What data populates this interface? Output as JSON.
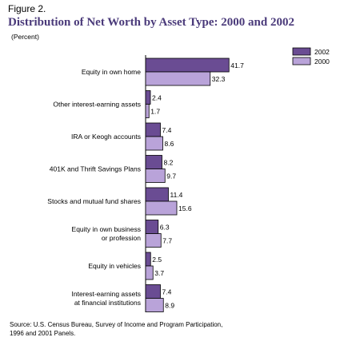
{
  "figure_label": "Figure 2.",
  "chart_data": {
    "type": "bar",
    "orientation": "horizontal",
    "title": "Distribution of Net Worth by Asset Type: 2000 and 2002",
    "subtitle": "(Percent)",
    "categories": [
      [
        "Equity in own home"
      ],
      [
        "Other interest-earning assets"
      ],
      [
        "IRA or Keogh accounts"
      ],
      [
        "401K and Thrift Savings Plans"
      ],
      [
        "Stocks and mutual fund shares"
      ],
      [
        "Equity in own business",
        "or profession"
      ],
      [
        "Equity in vehicles"
      ],
      [
        "Interest-earning assets",
        "at financial institutions"
      ]
    ],
    "series": [
      {
        "name": "2002",
        "color": "#6a4c93",
        "values": [
          41.7,
          2.4,
          7.4,
          8.2,
          11.4,
          6.3,
          2.5,
          7.4
        ]
      },
      {
        "name": "2000",
        "color": "#b9a3d9",
        "values": [
          32.3,
          1.7,
          8.6,
          9.7,
          15.6,
          7.7,
          3.7,
          8.9
        ]
      }
    ],
    "legend_position": "top-right",
    "grid": false
  },
  "source_lines": [
    "Source: U.S. Census Bureau, Survey of Income and Program Participation,",
    "1996 and 2001 Panels."
  ]
}
